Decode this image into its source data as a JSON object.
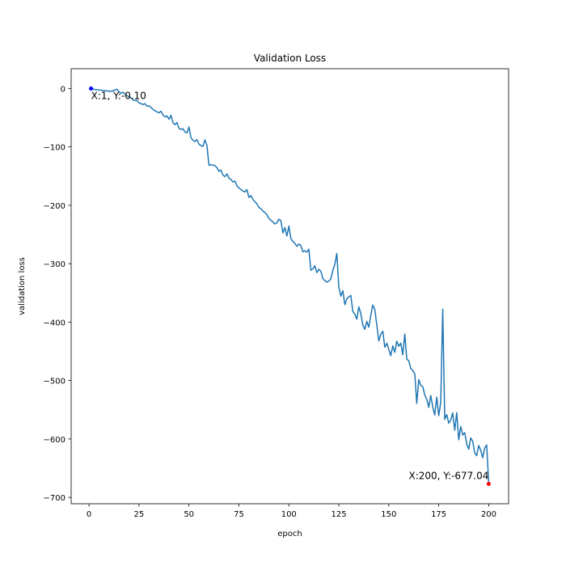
{
  "chart_data": {
    "type": "line",
    "title": "Validation Loss",
    "x_label": "epoch",
    "y_label": "validation loss",
    "color": "#1f77b4",
    "x": [
      1,
      2,
      3,
      4,
      5,
      6,
      7,
      8,
      9,
      10,
      11,
      12,
      13,
      14,
      15,
      16,
      17,
      18,
      19,
      20,
      21,
      22,
      23,
      24,
      25,
      26,
      27,
      28,
      29,
      30,
      31,
      32,
      33,
      34,
      35,
      36,
      37,
      38,
      39,
      40,
      41,
      42,
      43,
      44,
      45,
      46,
      47,
      48,
      49,
      50,
      51,
      52,
      53,
      54,
      55,
      56,
      57,
      58,
      59,
      60,
      61,
      62,
      63,
      64,
      65,
      66,
      67,
      68,
      69,
      70,
      71,
      72,
      73,
      74,
      75,
      76,
      77,
      78,
      79,
      80,
      81,
      82,
      83,
      84,
      85,
      86,
      87,
      88,
      89,
      90,
      91,
      92,
      93,
      94,
      95,
      96,
      97,
      98,
      99,
      100,
      101,
      102,
      103,
      104,
      105,
      106,
      107,
      108,
      109,
      110,
      111,
      112,
      113,
      114,
      115,
      116,
      117,
      118,
      119,
      120,
      121,
      122,
      123,
      124,
      125,
      126,
      127,
      128,
      129,
      130,
      131,
      132,
      133,
      134,
      135,
      136,
      137,
      138,
      139,
      140,
      141,
      142,
      143,
      144,
      145,
      146,
      147,
      148,
      149,
      150,
      151,
      152,
      153,
      154,
      155,
      156,
      157,
      158,
      159,
      160,
      161,
      162,
      163,
      164,
      165,
      166,
      167,
      168,
      169,
      170,
      171,
      172,
      173,
      174,
      175,
      176,
      177,
      178,
      179,
      180,
      181,
      182,
      183,
      184,
      185,
      186,
      187,
      188,
      189,
      190,
      191,
      192,
      193,
      194,
      195,
      196,
      197,
      198,
      199,
      200
    ],
    "values": [
      -0.1,
      -1.2,
      -1.8,
      -2.3,
      -2.7,
      -3.0,
      -3.4,
      -3.9,
      -4.2,
      -4.6,
      -5.1,
      -4.0,
      -2.5,
      -1.5,
      -5.8,
      -8.2,
      -6.5,
      -9.8,
      -12.5,
      -14.0,
      -16.2,
      -19.5,
      -21.0,
      -20.3,
      -24.8,
      -26.1,
      -27.5,
      -26.0,
      -30.4,
      -29.8,
      -32.5,
      -35.9,
      -38.2,
      -40.1,
      -41.7,
      -39.0,
      -45.3,
      -48.6,
      -47.2,
      -52.8,
      -46.0,
      -58.5,
      -62.1,
      -58.3,
      -68.4,
      -70.2,
      -68.9,
      -74.5,
      -76.1,
      -66.0,
      -84.2,
      -88.6,
      -91.0,
      -87.5,
      -95.3,
      -97.8,
      -99.1,
      -88.0,
      -97.5,
      -131.6,
      -130.4,
      -131.2,
      -132.0,
      -135.5,
      -141.8,
      -139.7,
      -148.3,
      -150.9,
      -146.2,
      -153.5,
      -155.8,
      -160.1,
      -158.4,
      -166.7,
      -170.3,
      -172.9,
      -175.6,
      -177.2,
      -173.1,
      -186.5,
      -183.4,
      -189.9,
      -194.1,
      -197.3,
      -203.8,
      -205.6,
      -209.9,
      -212.4,
      -216.1,
      -222.5,
      -225.8,
      -228.4,
      -232.0,
      -230.1,
      -223.9,
      -226.5,
      -247.3,
      -238.2,
      -252.6,
      -235.4,
      -257.1,
      -261.8,
      -265.3,
      -270.4,
      -266.2,
      -268.9,
      -279.6,
      -277.8,
      -280.2,
      -275.0,
      -311.3,
      -308.7,
      -303.5,
      -315.2,
      -309.6,
      -312.8,
      -325.4,
      -328.9,
      -331.5,
      -329.7,
      -326.2,
      -311.4,
      -300.8,
      -282.3,
      -340.5,
      -355.6,
      -346.2,
      -370.0,
      -360.4,
      -356.8,
      -354.2,
      -381.7,
      -386.5,
      -395.0,
      -373.8,
      -385.4,
      -405.2,
      -412.3,
      -398.7,
      -408.6,
      -388.2,
      -370.6,
      -378.5,
      -405.0,
      -432.2,
      -420.8,
      -415.6,
      -442.9,
      -436.1,
      -446.8,
      -457.4,
      -440.7,
      -451.6,
      -432.6,
      -441.3,
      -436.0,
      -455.8,
      -420.4,
      -463.5,
      -466.2,
      -479.3,
      -482.8,
      -488.4,
      -539.1,
      -498.6,
      -508.3,
      -510.4,
      -524.7,
      -531.8,
      -546.0,
      -525.6,
      -545.2,
      -558.9,
      -528.3,
      -560.1,
      -537.4,
      -378.0,
      -566.4,
      -558.2,
      -572.9,
      -567.8,
      -555.5,
      -585.2,
      -555.0,
      -601.4,
      -578.6,
      -593.3,
      -589.1,
      -608.7,
      -617.5,
      -598.2,
      -604.0,
      -623.8,
      -628.6,
      -611.2,
      -619.5,
      -632.1,
      -615.4,
      -610.3,
      -677.04
    ],
    "xlim": [
      -8.95,
      209.95
    ],
    "ylim": [
      -710.9,
      33.75
    ],
    "xticks": [
      0,
      25,
      50,
      75,
      100,
      125,
      150,
      175,
      200
    ],
    "yticks": [
      0,
      {
        "value": -100,
        "label": "−100"
      },
      {
        "value": -200,
        "label": "−200"
      },
      {
        "value": -300,
        "label": "−300"
      },
      {
        "value": -400,
        "label": "−400"
      },
      {
        "value": -500,
        "label": "−500"
      },
      {
        "value": -600,
        "label": "−600"
      },
      {
        "value": -700,
        "label": "−700"
      }
    ],
    "annotations": [
      {
        "text": "X:1, Y:-0.10",
        "x": 1,
        "y": -0.1,
        "color": "blue"
      },
      {
        "text": "X:200, Y:-677.04",
        "x": 200,
        "y": -677.04,
        "color": "red"
      }
    ]
  }
}
